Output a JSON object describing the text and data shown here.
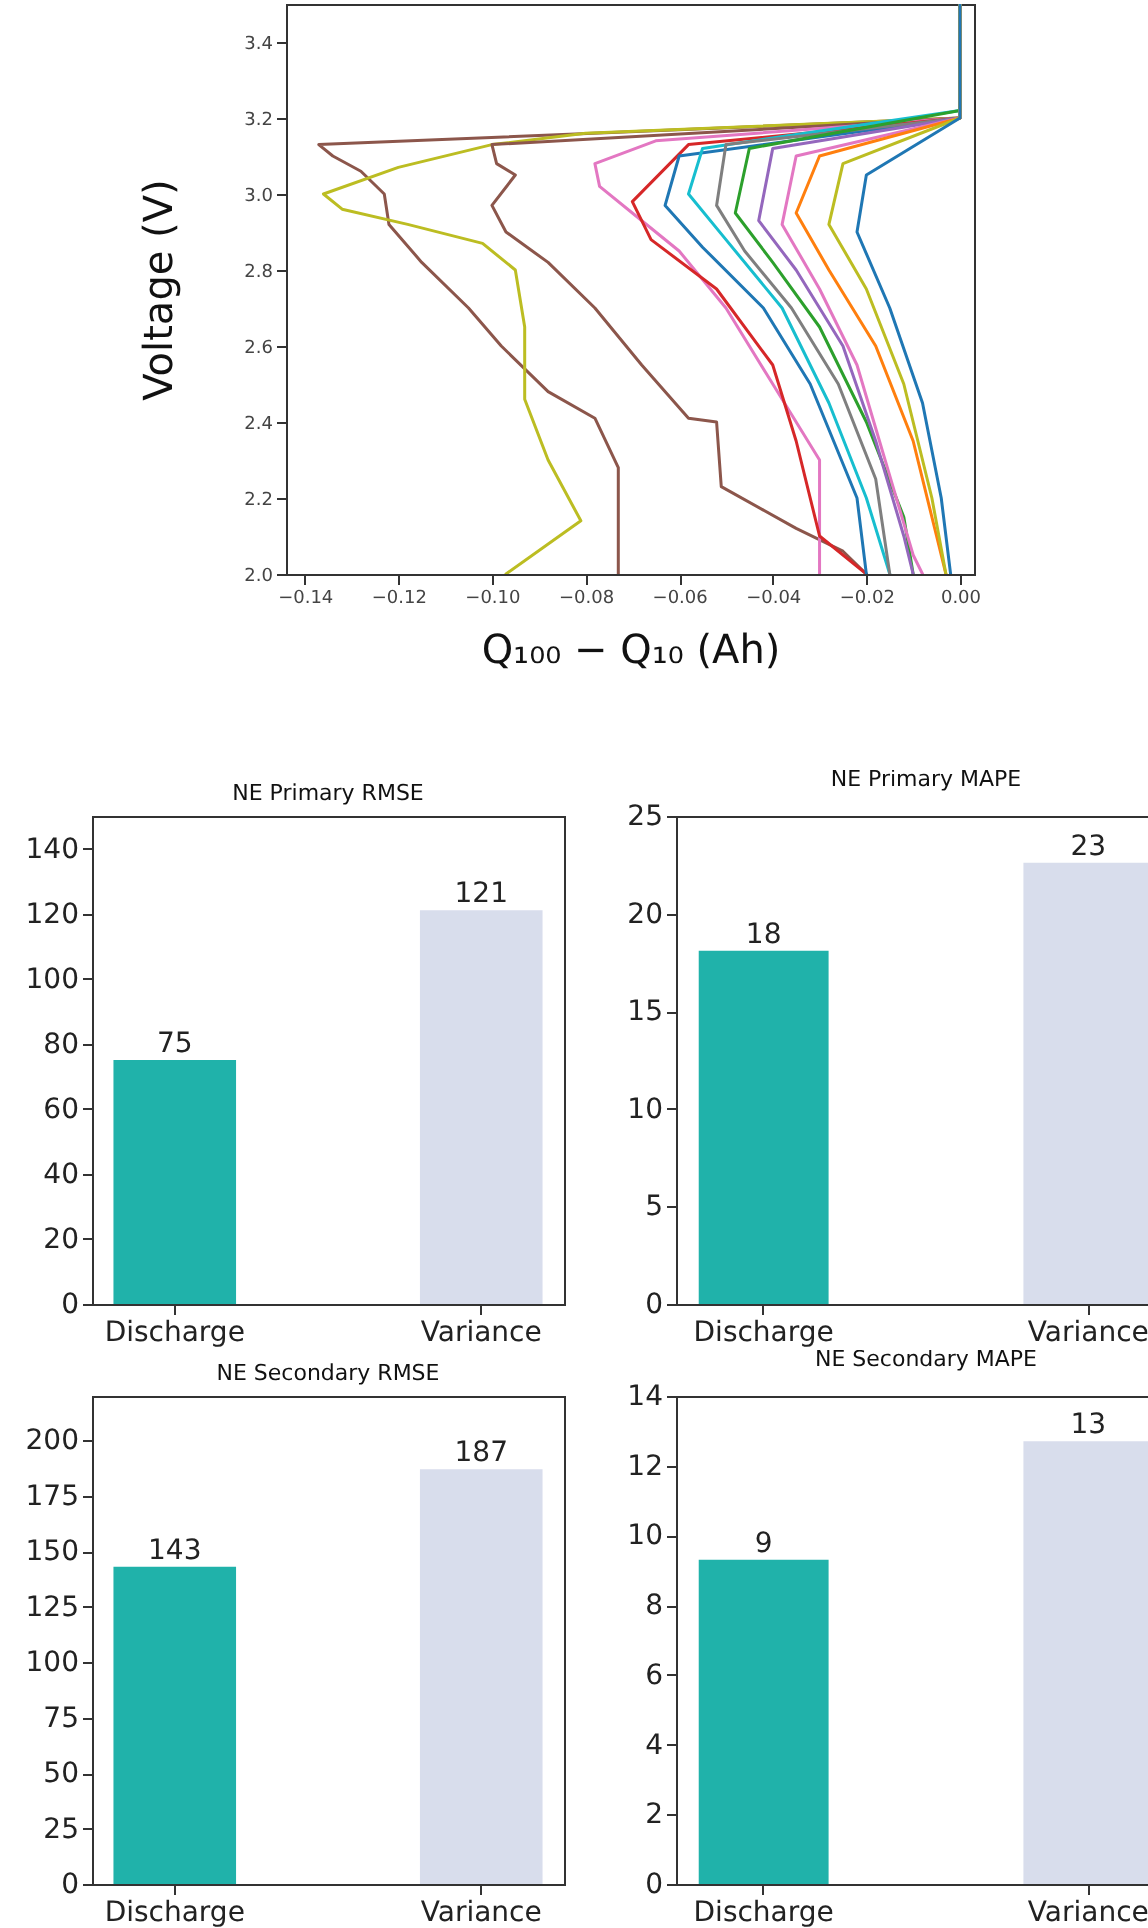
{
  "chart_data": [
    {
      "type": "line",
      "xlabel": "Q₁₀₀ − Q₁₀ (Ah)",
      "ylabel": "Voltage (V)",
      "xlim": [
        -0.144,
        0.003
      ],
      "ylim": [
        2.0,
        3.5
      ],
      "xticks": [
        {
          "value": -0.14,
          "label": "−0.14"
        },
        {
          "value": -0.12,
          "label": "−0.12"
        },
        {
          "value": -0.1,
          "label": "−0.10"
        },
        {
          "value": -0.08,
          "label": "−0.08"
        },
        {
          "value": -0.06,
          "label": "−0.06"
        },
        {
          "value": -0.04,
          "label": "−0.04"
        },
        {
          "value": -0.02,
          "label": "−0.02"
        },
        {
          "value": 0,
          "label": "0.00"
        }
      ],
      "yticks": [
        {
          "value": 2.0,
          "label": "2.0"
        },
        2.2,
        2.4,
        2.6,
        2.8,
        {
          "value": 3.0,
          "label": "3.0"
        },
        3.2,
        3.4
      ],
      "series": [
        {
          "color": "#8c564b",
          "x": [
            0,
            0,
            -0.137,
            -0.134,
            -0.128,
            -0.123,
            -0.122,
            -0.115,
            -0.105,
            -0.098,
            -0.088,
            -0.078,
            -0.073,
            -0.073
          ],
          "values": [
            3.5,
            3.2,
            3.13,
            3.1,
            3.06,
            3.0,
            2.92,
            2.82,
            2.7,
            2.6,
            2.48,
            2.41,
            2.28,
            2.0
          ]
        },
        {
          "color": "#bcbd22",
          "x": [
            0,
            0,
            -0.08,
            -0.1,
            -0.12,
            -0.136,
            -0.132,
            -0.118,
            -0.102,
            -0.095,
            -0.093,
            -0.093,
            -0.088,
            -0.081,
            -0.097
          ],
          "values": [
            3.5,
            3.2,
            3.16,
            3.13,
            3.07,
            3.0,
            2.96,
            2.92,
            2.87,
            2.8,
            2.65,
            2.46,
            2.3,
            2.14,
            2.0
          ]
        },
        {
          "color": "#8c564b",
          "x": [
            0,
            0,
            -0.1,
            -0.099,
            -0.095,
            -0.1,
            -0.097,
            -0.088,
            -0.078,
            -0.068,
            -0.058,
            -0.052,
            -0.051,
            -0.035,
            -0.025,
            -0.02
          ],
          "values": [
            3.5,
            3.2,
            3.13,
            3.08,
            3.05,
            2.97,
            2.9,
            2.82,
            2.7,
            2.55,
            2.41,
            2.4,
            2.23,
            2.12,
            2.06,
            2.0
          ]
        },
        {
          "color": "#e377c2",
          "x": [
            0,
            0,
            -0.065,
            -0.078,
            -0.077,
            -0.07,
            -0.06,
            -0.05,
            -0.04,
            -0.03,
            -0.03
          ],
          "values": [
            3.5,
            3.2,
            3.14,
            3.08,
            3.02,
            2.95,
            2.85,
            2.7,
            2.5,
            2.3,
            2.0
          ]
        },
        {
          "color": "#d62728",
          "x": [
            0,
            0,
            -0.058,
            -0.07,
            -0.066,
            -0.052,
            -0.04,
            -0.035,
            -0.03,
            -0.02
          ],
          "values": [
            3.5,
            3.2,
            3.13,
            2.98,
            2.88,
            2.75,
            2.55,
            2.35,
            2.1,
            2.0
          ]
        },
        {
          "color": "#1f77b4",
          "x": [
            0,
            0,
            -0.06,
            -0.063,
            -0.055,
            -0.042,
            -0.032,
            -0.022,
            -0.02
          ],
          "values": [
            3.5,
            3.2,
            3.1,
            2.97,
            2.86,
            2.7,
            2.5,
            2.2,
            2.0
          ]
        },
        {
          "color": "#17becf",
          "x": [
            0,
            0,
            -0.055,
            -0.058,
            -0.05,
            -0.038,
            -0.028,
            -0.02,
            -0.015
          ],
          "values": [
            3.5,
            3.22,
            3.12,
            3.0,
            2.88,
            2.7,
            2.45,
            2.2,
            2.0
          ]
        },
        {
          "color": "#7f7f7f",
          "x": [
            0,
            0,
            -0.05,
            -0.052,
            -0.046,
            -0.036,
            -0.026,
            -0.018,
            -0.015
          ],
          "values": [
            3.5,
            3.2,
            3.13,
            2.97,
            2.85,
            2.7,
            2.5,
            2.25,
            2.0
          ]
        },
        {
          "color": "#2ca02c",
          "x": [
            0,
            0,
            -0.045,
            -0.048,
            -0.04,
            -0.03,
            -0.02,
            -0.012,
            -0.01
          ],
          "values": [
            3.5,
            3.22,
            3.12,
            2.95,
            2.82,
            2.65,
            2.4,
            2.15,
            2.0
          ]
        },
        {
          "color": "#9467bd",
          "x": [
            0,
            0,
            -0.04,
            -0.043,
            -0.035,
            -0.025,
            -0.018,
            -0.012,
            -0.01
          ],
          "values": [
            3.5,
            3.2,
            3.12,
            2.93,
            2.8,
            2.6,
            2.35,
            2.1,
            2.0
          ]
        },
        {
          "color": "#e377c2",
          "x": [
            0,
            0,
            -0.035,
            -0.038,
            -0.03,
            -0.022,
            -0.016,
            -0.01,
            -0.008
          ],
          "values": [
            3.5,
            3.2,
            3.1,
            2.92,
            2.75,
            2.55,
            2.3,
            2.05,
            2.0
          ]
        },
        {
          "color": "#ff7f0e",
          "x": [
            0,
            0,
            -0.03,
            -0.035,
            -0.028,
            -0.018,
            -0.01,
            -0.005,
            -0.003
          ],
          "values": [
            3.5,
            3.2,
            3.1,
            2.95,
            2.8,
            2.6,
            2.35,
            2.1,
            2.0
          ]
        },
        {
          "color": "#bcbd22",
          "x": [
            0,
            0,
            -0.025,
            -0.028,
            -0.02,
            -0.012,
            -0.006,
            -0.003
          ],
          "values": [
            3.5,
            3.2,
            3.08,
            2.92,
            2.75,
            2.5,
            2.2,
            2.0
          ]
        },
        {
          "color": "#1f77b4",
          "x": [
            0,
            0,
            -0.02,
            -0.022,
            -0.015,
            -0.008,
            -0.004,
            -0.002
          ],
          "values": [
            3.5,
            3.2,
            3.05,
            2.9,
            2.7,
            2.45,
            2.2,
            2.0
          ]
        }
      ]
    },
    {
      "type": "bar",
      "title": "NE Primary RMSE",
      "categories": [
        "Discharge",
        "Variance"
      ],
      "values": [
        75,
        121
      ],
      "colors": [
        "#20b2aa",
        "#d8ddec"
      ],
      "ylim": [
        0,
        150
      ],
      "yticks": [
        0,
        20,
        40,
        60,
        80,
        100,
        120,
        140
      ],
      "data_labels": true
    },
    {
      "type": "bar",
      "title": "NE Primary MAPE",
      "categories": [
        "Discharge",
        "Variance"
      ],
      "values": [
        18.1,
        22.6
      ],
      "value_labels": [
        "18",
        "23"
      ],
      "colors": [
        "#20b2aa",
        "#d8ddec"
      ],
      "ylim": [
        0,
        25
      ],
      "yticks": [
        0,
        5,
        10,
        15,
        20,
        25
      ]
    },
    {
      "type": "bar",
      "title": "NE Secondary RMSE",
      "categories": [
        "Discharge",
        "Variance"
      ],
      "values": [
        143,
        187
      ],
      "colors": [
        "#20b2aa",
        "#d8ddec"
      ],
      "ylim": [
        0,
        220
      ],
      "yticks": [
        0,
        25,
        50,
        75,
        100,
        125,
        150,
        175,
        200
      ],
      "data_labels": true
    },
    {
      "type": "bar",
      "title": "NE Secondary MAPE",
      "categories": [
        "Discharge",
        "Variance"
      ],
      "values": [
        9.3,
        12.7
      ],
      "value_labels": [
        "9",
        "13"
      ],
      "colors": [
        "#20b2aa",
        "#d8ddec"
      ],
      "ylim": [
        0,
        14
      ],
      "yticks": [
        0,
        2,
        4,
        6,
        8,
        10,
        12,
        14
      ]
    }
  ]
}
